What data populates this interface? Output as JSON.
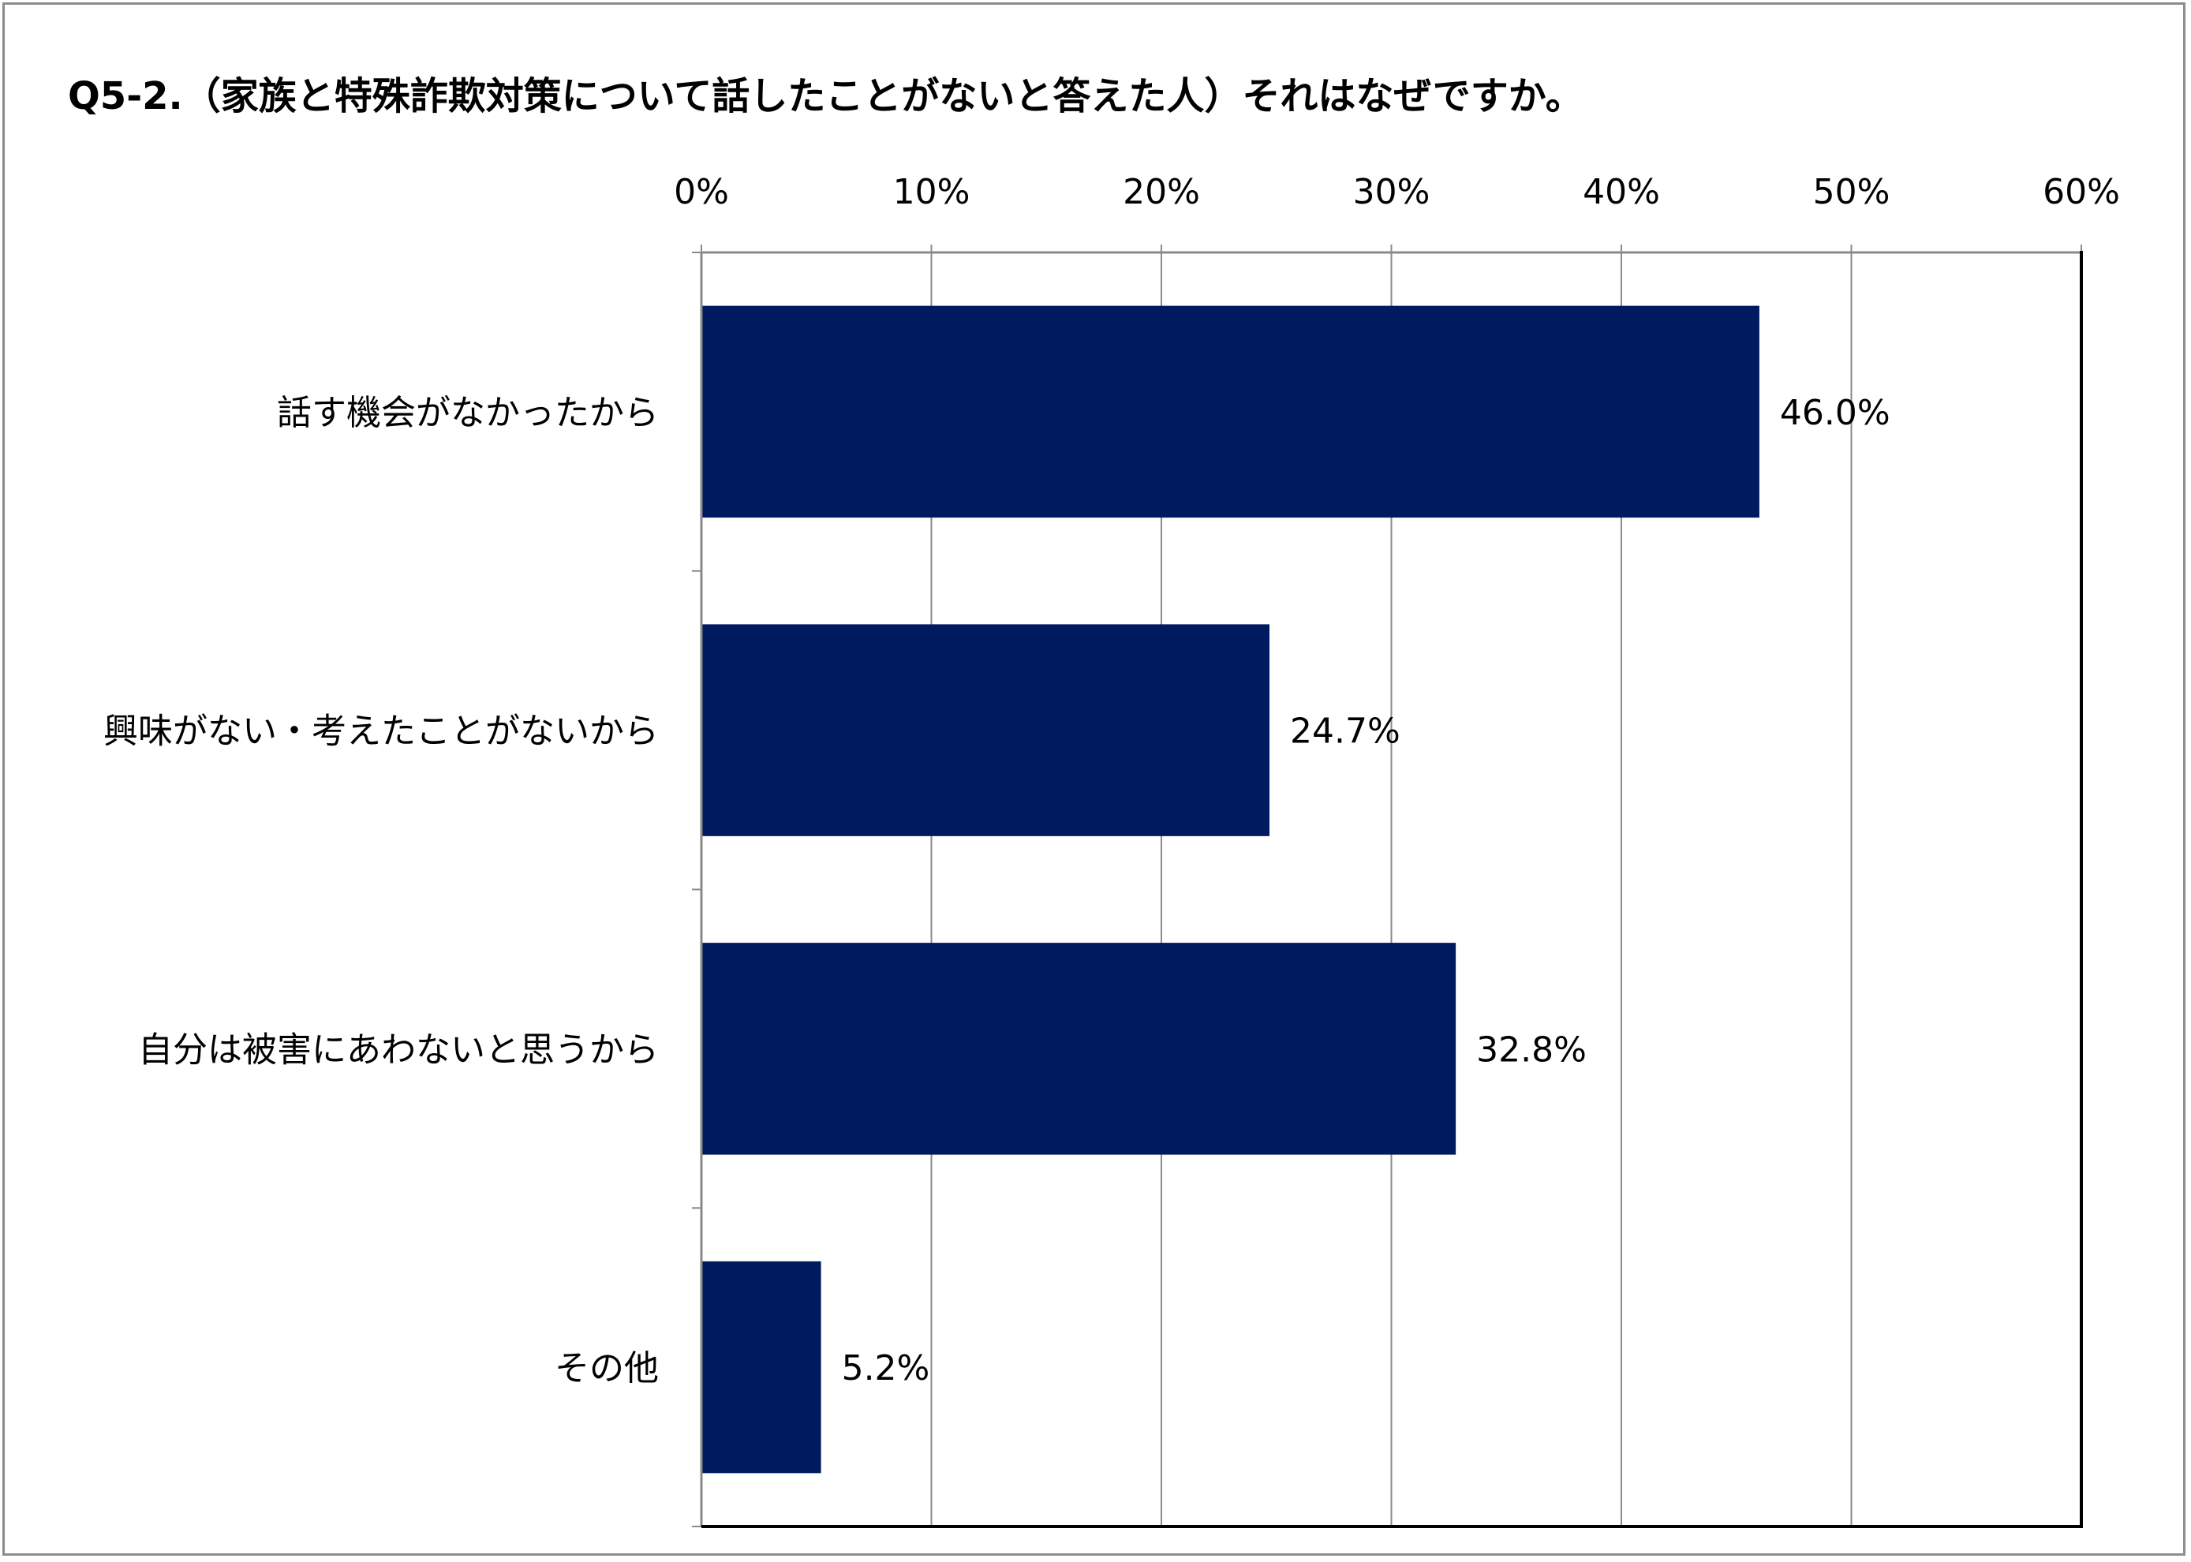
{
  "chart_data": {
    "type": "bar",
    "orientation": "horizontal",
    "title": "Q5-2.（家族と特殊詐欺対策について話したことがないと答えた人）それはなぜですか。",
    "categories": [
      "話す機会がなかったから",
      "興味がない・考えたことがないから",
      "自分は被害にあわないと思うから",
      "その他"
    ],
    "values": [
      46.0,
      24.7,
      32.8,
      5.2
    ],
    "value_labels": [
      "46.0%",
      "24.7%",
      "32.8%",
      "5.2%"
    ],
    "xlim": [
      0,
      60
    ],
    "x_ticks": [
      "0%",
      "10%",
      "20%",
      "30%",
      "40%",
      "50%",
      "60%"
    ],
    "x_axis_position": "top",
    "grid": true,
    "legend": "none",
    "bar_color": "#001A5F"
  }
}
